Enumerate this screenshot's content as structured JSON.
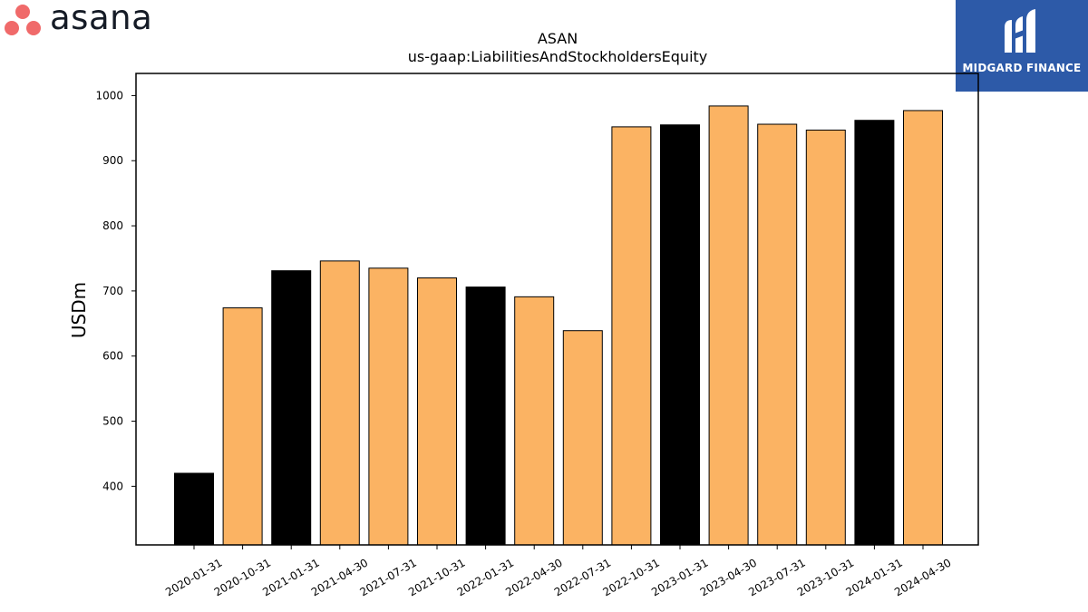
{
  "logos": {
    "left_brand": "asana",
    "right_brand": "MIDGARD FINANCE"
  },
  "colors": {
    "orange": "#fbb363",
    "black": "#000000",
    "asana_coral": "#f06a6a",
    "midgard_blue": "#2d5aa8"
  },
  "chart_data": {
    "type": "bar",
    "title": "ASAN",
    "subtitle": "us-gaap:LiabilitiesAndStockholdersEquity",
    "ylabel": "USDm",
    "xlabel": "",
    "ylim": [
      310,
      1034
    ],
    "yticks": [
      400,
      500,
      600,
      700,
      800,
      900,
      1000
    ],
    "grid": false,
    "categories": [
      "2020-01-31",
      "2020-10-31",
      "2021-01-31",
      "2021-04-30",
      "2021-07-31",
      "2021-10-31",
      "2022-01-31",
      "2022-04-30",
      "2022-07-31",
      "2022-10-31",
      "2023-01-31",
      "2023-04-30",
      "2023-07-31",
      "2023-10-31",
      "2024-01-31",
      "2024-04-30"
    ],
    "values": [
      420,
      674,
      731,
      746,
      735,
      720,
      706,
      691,
      639,
      952,
      955,
      984,
      956,
      947,
      962,
      977
    ],
    "bar_colors": [
      "black",
      "orange",
      "black",
      "orange",
      "orange",
      "orange",
      "black",
      "orange",
      "orange",
      "orange",
      "black",
      "orange",
      "orange",
      "orange",
      "black",
      "orange"
    ]
  }
}
